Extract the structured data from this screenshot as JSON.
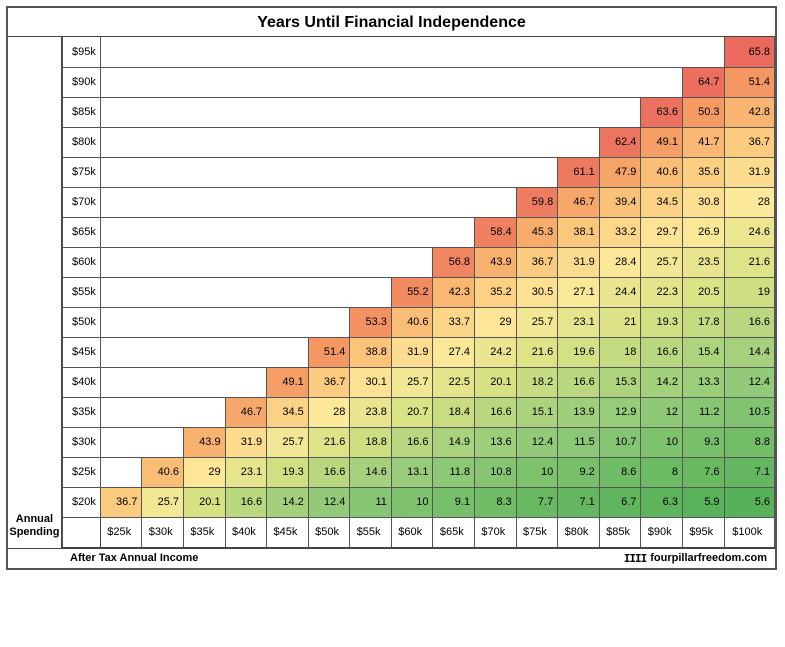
{
  "type": "heatmap",
  "title": "Years Until Financial Independence",
  "ylabel_line1": "Annual",
  "ylabel_line2": "Spending",
  "xlabel": "After Tax Annual Income",
  "credit_text": "fourpillarfreedom.com",
  "credit_bars": "IIII",
  "row_headers": [
    "$95k",
    "$90k",
    "$85k",
    "$80k",
    "$75k",
    "$70k",
    "$65k",
    "$60k",
    "$55k",
    "$50k",
    "$45k",
    "$40k",
    "$35k",
    "$30k",
    "$25k",
    "$20k"
  ],
  "col_headers": [
    "$25k",
    "$30k",
    "$35k",
    "$40k",
    "$45k",
    "$50k",
    "$55k",
    "$60k",
    "$65k",
    "$70k",
    "$75k",
    "$80k",
    "$85k",
    "$90k",
    "$95k",
    "$100k"
  ],
  "cells": [
    [
      null,
      null,
      null,
      null,
      null,
      null,
      null,
      null,
      null,
      null,
      null,
      null,
      null,
      null,
      null,
      65.8
    ],
    [
      null,
      null,
      null,
      null,
      null,
      null,
      null,
      null,
      null,
      null,
      null,
      null,
      null,
      null,
      64.7,
      51.4
    ],
    [
      null,
      null,
      null,
      null,
      null,
      null,
      null,
      null,
      null,
      null,
      null,
      null,
      null,
      63.6,
      50.3,
      42.8
    ],
    [
      null,
      null,
      null,
      null,
      null,
      null,
      null,
      null,
      null,
      null,
      null,
      null,
      62.4,
      49.1,
      41.7,
      36.7
    ],
    [
      null,
      null,
      null,
      null,
      null,
      null,
      null,
      null,
      null,
      null,
      null,
      61.1,
      47.9,
      40.6,
      35.6,
      31.9
    ],
    [
      null,
      null,
      null,
      null,
      null,
      null,
      null,
      null,
      null,
      null,
      59.8,
      46.7,
      39.4,
      34.5,
      30.8,
      28
    ],
    [
      null,
      null,
      null,
      null,
      null,
      null,
      null,
      null,
      null,
      58.4,
      45.3,
      38.1,
      33.2,
      29.7,
      26.9,
      24.6
    ],
    [
      null,
      null,
      null,
      null,
      null,
      null,
      null,
      null,
      56.8,
      43.9,
      36.7,
      31.9,
      28.4,
      25.7,
      23.5,
      21.6
    ],
    [
      null,
      null,
      null,
      null,
      null,
      null,
      null,
      55.2,
      42.3,
      35.2,
      30.5,
      27.1,
      24.4,
      22.3,
      20.5,
      19
    ],
    [
      null,
      null,
      null,
      null,
      null,
      null,
      53.3,
      40.6,
      33.7,
      29,
      25.7,
      23.1,
      21,
      19.3,
      17.8,
      16.6
    ],
    [
      null,
      null,
      null,
      null,
      null,
      51.4,
      38.8,
      31.9,
      27.4,
      24.2,
      21.6,
      19.6,
      18,
      16.6,
      15.4,
      14.4
    ],
    [
      null,
      null,
      null,
      null,
      49.1,
      36.7,
      30.1,
      25.7,
      22.5,
      20.1,
      18.2,
      16.6,
      15.3,
      14.2,
      13.3,
      12.4
    ],
    [
      null,
      null,
      null,
      46.7,
      34.5,
      28,
      23.8,
      20.7,
      18.4,
      16.6,
      15.1,
      13.9,
      12.9,
      12,
      11.2,
      10.5
    ],
    [
      null,
      null,
      43.9,
      31.9,
      25.7,
      21.6,
      18.8,
      16.6,
      14.9,
      13.6,
      12.4,
      11.5,
      10.7,
      10,
      9.3,
      8.8
    ],
    [
      null,
      40.6,
      29,
      23.1,
      19.3,
      16.6,
      14.6,
      13.1,
      11.8,
      10.8,
      10,
      9.2,
      8.6,
      8,
      7.6,
      7.1
    ],
    [
      36.7,
      25.7,
      20.1,
      16.6,
      14.2,
      12.4,
      11,
      10,
      9.1,
      8.3,
      7.7,
      7.1,
      6.7,
      6.3,
      5.9,
      5.6
    ]
  ],
  "color_scale": {
    "min_value": 5.6,
    "max_value": 65.8,
    "stops": [
      {
        "at": 5.6,
        "color": "#57b158"
      },
      {
        "at": 12,
        "color": "#8fc978"
      },
      {
        "at": 20,
        "color": "#d7e184"
      },
      {
        "at": 28,
        "color": "#fde99a"
      },
      {
        "at": 38,
        "color": "#fbc77b"
      },
      {
        "at": 50,
        "color": "#f59b63"
      },
      {
        "at": 65.8,
        "color": "#ea6b5e"
      }
    ]
  },
  "border_color": "#555555",
  "background_color": "#ffffff",
  "title_fontsize": 16,
  "label_fontsize": 11,
  "cell_fontsize": 11
}
